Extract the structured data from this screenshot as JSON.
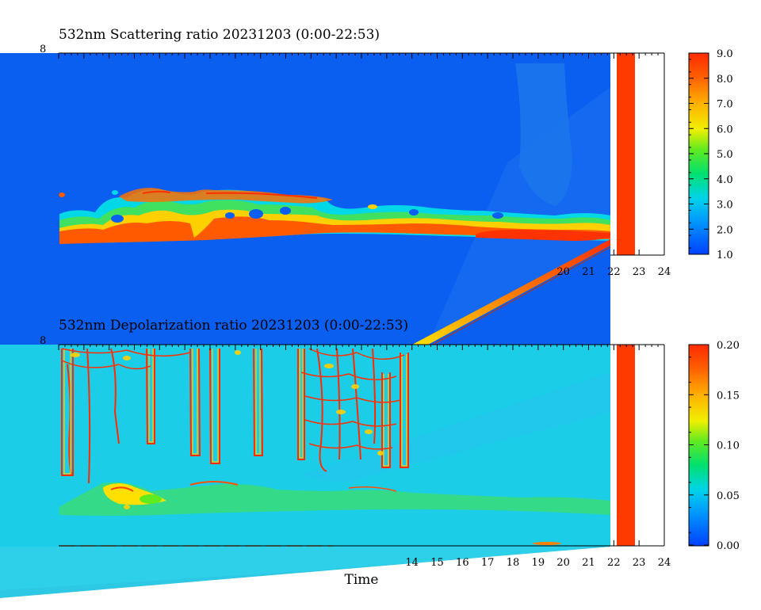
{
  "chart_data": [
    {
      "type": "heatmap",
      "title": "532nm Scattering ratio  20231203 (0:00-22:53)",
      "x_ticks": [
        0,
        1,
        2,
        3,
        4,
        5,
        6,
        7,
        8,
        9,
        10,
        11,
        12,
        13,
        14,
        15,
        16,
        17,
        18,
        19,
        20,
        21,
        22,
        23,
        24
      ],
      "x_tick_labels_visible": [
        "20",
        "21",
        "22",
        "23",
        "24"
      ],
      "xlim": [
        0,
        24
      ],
      "data_end_hour": 22.88,
      "colorbar": {
        "min": 1.0,
        "max": 9.0,
        "labels": [
          "9.0",
          "8.0",
          "7.0",
          "6.0",
          "5.0",
          "4.0",
          "3.0",
          "2.0",
          "1.0"
        ]
      },
      "background_value": 1.3,
      "cloud_layer_value": 8.0,
      "cloud_layer_span_hours": [
        0,
        22
      ]
    },
    {
      "type": "heatmap",
      "title": "532nm Depolarization ratio  20231203 (0:00-22:53)",
      "x_ticks": [
        0,
        1,
        2,
        3,
        4,
        5,
        6,
        7,
        8,
        9,
        10,
        11,
        12,
        13,
        14,
        15,
        16,
        17,
        18,
        19,
        20,
        21,
        22,
        23,
        24
      ],
      "x_tick_labels_visible": [
        "14",
        "15",
        "16",
        "17",
        "18",
        "19",
        "20",
        "21",
        "22",
        "23",
        "24"
      ],
      "xlim": [
        0,
        24
      ],
      "xlabel": "Time",
      "data_end_hour": 22.88,
      "colorbar": {
        "min": 0.0,
        "max": 0.2,
        "labels": [
          "0.20",
          "0.15",
          "0.10",
          "0.05",
          "0.00"
        ]
      },
      "background_value": 0.04,
      "high_depol_value": 0.2
    }
  ]
}
